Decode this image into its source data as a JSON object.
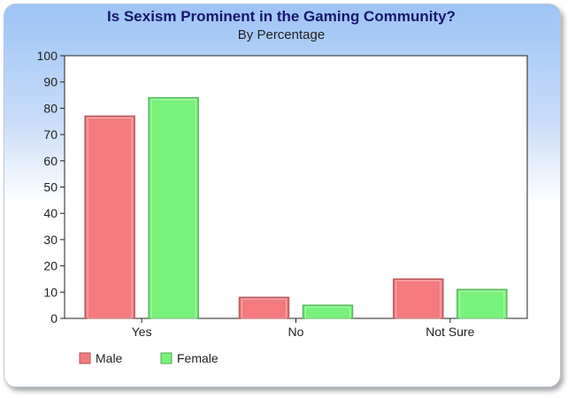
{
  "chart_data": {
    "type": "bar",
    "title": "Is Sexism Prominent in the Gaming Community?",
    "subtitle": "By Percentage",
    "categories": [
      "Yes",
      "No",
      "Not Sure"
    ],
    "series": [
      {
        "name": "Male",
        "values": [
          77,
          8,
          15
        ],
        "color": "#f47a7e"
      },
      {
        "name": "Female",
        "values": [
          84,
          5,
          11
        ],
        "color": "#77f27a"
      }
    ],
    "ylim": [
      0,
      100
    ],
    "yticks": [
      0,
      10,
      20,
      30,
      40,
      50,
      60,
      70,
      80,
      90,
      100
    ],
    "grid": false,
    "legend": "bottom-left"
  }
}
